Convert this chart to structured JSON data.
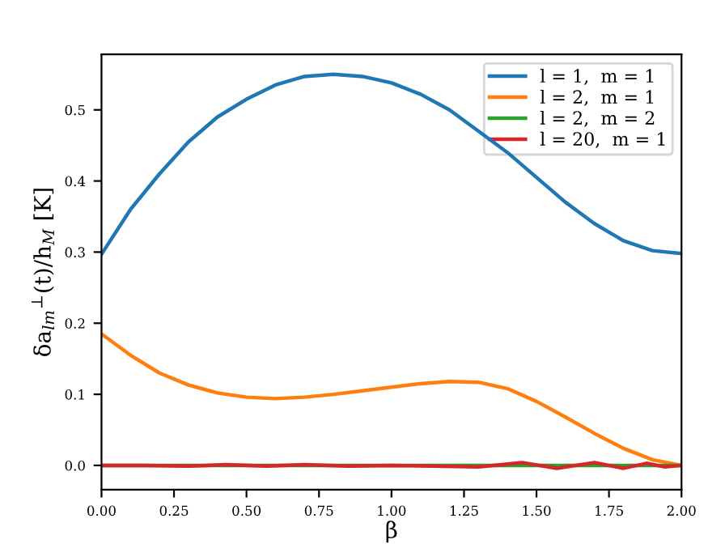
{
  "chart_data": {
    "type": "line",
    "xlabel": "β",
    "ylabel": "δa$_{lm}$$^{⊥}$(t)/h$_{M}$ [K]",
    "xlim": [
      0,
      2
    ],
    "ylim": [
      -0.034,
      0.578
    ],
    "xticks": [
      {
        "value": 0,
        "label": "0.00"
      },
      0.25,
      {
        "value": 0.5,
        "label": "0.50"
      },
      0.75,
      {
        "value": 1,
        "label": "1.00"
      },
      1.25,
      {
        "value": 1.5,
        "label": "1.50"
      },
      1.75,
      {
        "value": 2,
        "label": "2.00"
      }
    ],
    "yticks": [
      {
        "value": 0,
        "label": "0.0"
      },
      0.1,
      0.2,
      0.3,
      0.4,
      0.5
    ],
    "grid": false,
    "legend": "top right",
    "line_style": "solid",
    "marker": "none",
    "series": [
      {
        "name": "l = 1,  m = 1",
        "color": "#1f77b4",
        "x": [
          0,
          0.1,
          0.2,
          0.3,
          0.4,
          0.5,
          0.6,
          0.7,
          0.8,
          0.9,
          1.0,
          1.1,
          1.2,
          1.3,
          1.4,
          1.5,
          1.6,
          1.7,
          1.8,
          1.9,
          2.0
        ],
        "values": [
          0.297,
          0.36,
          0.41,
          0.455,
          0.49,
          0.515,
          0.535,
          0.547,
          0.55,
          0.547,
          0.538,
          0.522,
          0.5,
          0.47,
          0.44,
          0.405,
          0.37,
          0.34,
          0.316,
          0.302,
          0.298
        ]
      },
      {
        "name": "l = 2,  m = 1",
        "color": "#ff7f0e",
        "x": [
          0,
          0.1,
          0.2,
          0.3,
          0.4,
          0.5,
          0.6,
          0.7,
          0.8,
          0.9,
          1.0,
          1.1,
          1.2,
          1.3,
          1.4,
          1.5,
          1.6,
          1.7,
          1.8,
          1.9,
          2.0
        ],
        "values": [
          0.185,
          0.155,
          0.13,
          0.113,
          0.102,
          0.096,
          0.094,
          0.096,
          0.1,
          0.105,
          0.11,
          0.115,
          0.118,
          0.117,
          0.108,
          0.09,
          0.068,
          0.045,
          0.024,
          0.008,
          0.0
        ]
      },
      {
        "name": "l = 2,  m = 2",
        "color": "#2ca02c",
        "x": [
          0,
          2
        ],
        "values": [
          0,
          0
        ]
      },
      {
        "name": "l = 20,  m = 1",
        "color": "#d62728",
        "x": [
          0,
          0.15,
          0.3,
          0.43,
          0.57,
          0.7,
          0.85,
          1.0,
          1.3,
          1.45,
          1.57,
          1.7,
          1.8,
          1.88,
          1.94,
          2.0
        ],
        "values": [
          0,
          0,
          -0.001,
          0.001,
          -0.001,
          0.001,
          -0.001,
          0,
          -0.002,
          0.004,
          -0.004,
          0.004,
          -0.004,
          0.003,
          -0.002,
          0
        ]
      }
    ]
  }
}
